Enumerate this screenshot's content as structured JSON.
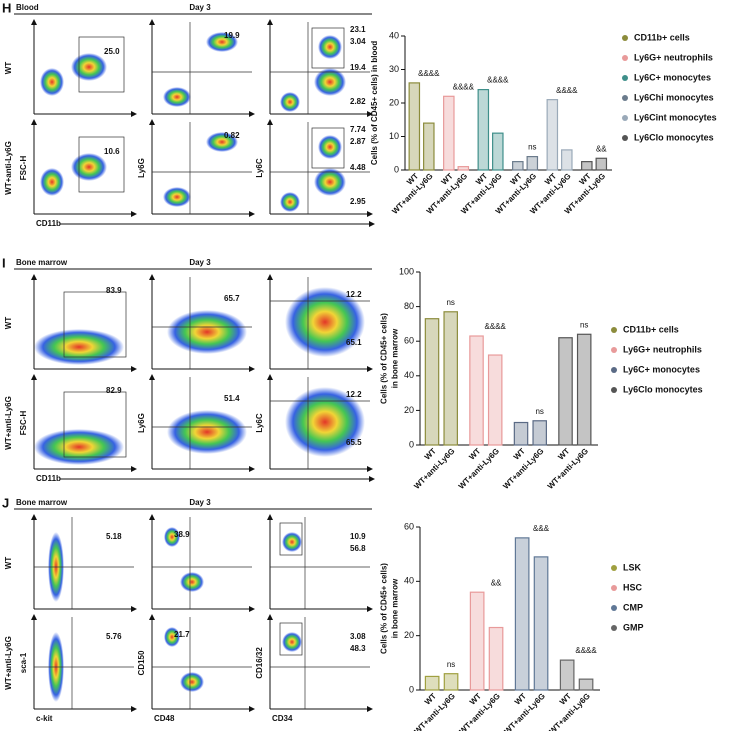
{
  "panels": [
    {
      "letter": "H",
      "tissue": "Blood",
      "day": "Day 3",
      "rows": [
        "WT",
        "WT+anti-Ly6G"
      ],
      "y_labels": [
        "FSC-H",
        "Ly6G",
        "Ly6C"
      ],
      "x_labels": [
        "CD11b"
      ],
      "plots": [
        {
          "gates": [
            [
              "25.0"
            ],
            [
              "10.6"
            ]
          ]
        },
        {
          "gates": [
            [
              "19.9"
            ],
            [
              "0.82"
            ]
          ]
        },
        {
          "gates": [
            [
              "23.1",
              "3.04",
              "19.4",
              "2.82"
            ],
            [
              "7.74",
              "2.87",
              "4.48",
              "2.95"
            ]
          ]
        }
      ]
    },
    {
      "letter": "I",
      "tissue": "Bone marrow",
      "day": "Day 3",
      "rows": [
        "WT",
        "WT+anti-Ly6G"
      ],
      "y_labels": [
        "FSC-H",
        "Ly6G",
        "Ly6C"
      ],
      "x_labels": [
        "CD11b"
      ],
      "plots": [
        {
          "gates": [
            [
              "83.9"
            ],
            [
              "82.9"
            ]
          ]
        },
        {
          "gates": [
            [
              "65.7"
            ],
            [
              "51.4"
            ]
          ]
        },
        {
          "gates": [
            [
              "12.2",
              "65.1"
            ],
            [
              "12.2",
              "65.5"
            ]
          ]
        }
      ]
    },
    {
      "letter": "J",
      "tissue": "Bone marrow",
      "day": "Day 3",
      "rows": [
        "WT",
        "WT+anti-Ly6G"
      ],
      "y_labels": [
        "sca-1",
        "CD150",
        "CD16/32"
      ],
      "x_labels": [
        "c-kit",
        "CD48",
        "CD34"
      ],
      "plots": [
        {
          "gates": [
            [
              "5.18"
            ],
            [
              "5.76"
            ]
          ]
        },
        {
          "gates": [
            [
              "38.9"
            ],
            [
              "21.7"
            ]
          ]
        },
        {
          "gates": [
            [
              "10.9",
              "56.8"
            ],
            [
              "3.08",
              "48.3"
            ]
          ]
        }
      ]
    }
  ],
  "chart_data": [
    {
      "type": "bar",
      "y_label": [
        "Cells (% of CD45+ cells) in blood"
      ],
      "categories": [
        "WT",
        "WT+anti-Ly6G"
      ],
      "ylim": [
        0,
        40
      ],
      "yticks": [
        0,
        10,
        20,
        30,
        40
      ],
      "series": [
        {
          "name": "CD11b+ cells",
          "color": "#8c8c3c",
          "values": [
            26,
            14
          ],
          "annotation": "&&&&"
        },
        {
          "name": "Ly6G+ neutrophils",
          "color": "#e89a9a",
          "values": [
            22,
            1
          ],
          "annotation": "&&&&"
        },
        {
          "name": "Ly6C+ monocytes",
          "color": "#3f8f8a",
          "values": [
            24,
            11
          ],
          "annotation": "&&&&"
        },
        {
          "name": "Ly6Chi monocytes",
          "color": "#6b7b8c",
          "values": [
            2.5,
            4
          ],
          "annotation": "ns"
        },
        {
          "name": "Ly6Cint monocytes",
          "color": "#9aa9b8",
          "values": [
            21,
            6
          ],
          "annotation": "&&&&"
        },
        {
          "name": "Ly6Clo monocytes",
          "color": "#555555",
          "values": [
            2.5,
            3.5
          ],
          "annotation": "&&"
        }
      ]
    },
    {
      "type": "bar",
      "y_label": [
        "Cells (% of CD45+ cells)",
        "in bone marrow"
      ],
      "categories": [
        "WT",
        "WT+anti-Ly6G"
      ],
      "ylim": [
        0,
        100
      ],
      "yticks": [
        0,
        20,
        40,
        60,
        80,
        100
      ],
      "series": [
        {
          "name": "CD11b+ cells",
          "color": "#8c8c3c",
          "values": [
            73,
            77
          ],
          "annotation": "ns"
        },
        {
          "name": "Ly6G+ neutrophils",
          "color": "#e89a9a",
          "values": [
            63,
            52
          ],
          "annotation": "&&&&"
        },
        {
          "name": "Ly6C+ monocytes",
          "color": "#5a6a85",
          "values": [
            13,
            14
          ],
          "annotation": "ns"
        },
        {
          "name": "Ly6Clo monocytes",
          "color": "#555555",
          "values": [
            62,
            64
          ],
          "annotation": "ns"
        }
      ]
    },
    {
      "type": "bar",
      "y_label": [
        "Cells (% of CD45+ cells)",
        "in bone marrow"
      ],
      "categories": [
        "WT",
        "WT+anti-Ly6G"
      ],
      "ylim": [
        0,
        60
      ],
      "yticks": [
        0,
        20,
        40,
        60
      ],
      "series": [
        {
          "name": "LSK",
          "color": "#a0a040",
          "values": [
            5,
            6
          ],
          "annotation": "ns"
        },
        {
          "name": "HSC",
          "color": "#e89a9a",
          "values": [
            36,
            23
          ],
          "annotation": "&&"
        },
        {
          "name": "CMP",
          "color": "#607896",
          "values": [
            56,
            49
          ],
          "annotation": "&&&"
        },
        {
          "name": "GMP",
          "color": "#666666",
          "values": [
            11,
            4
          ],
          "annotation": "&&&&"
        }
      ]
    }
  ]
}
